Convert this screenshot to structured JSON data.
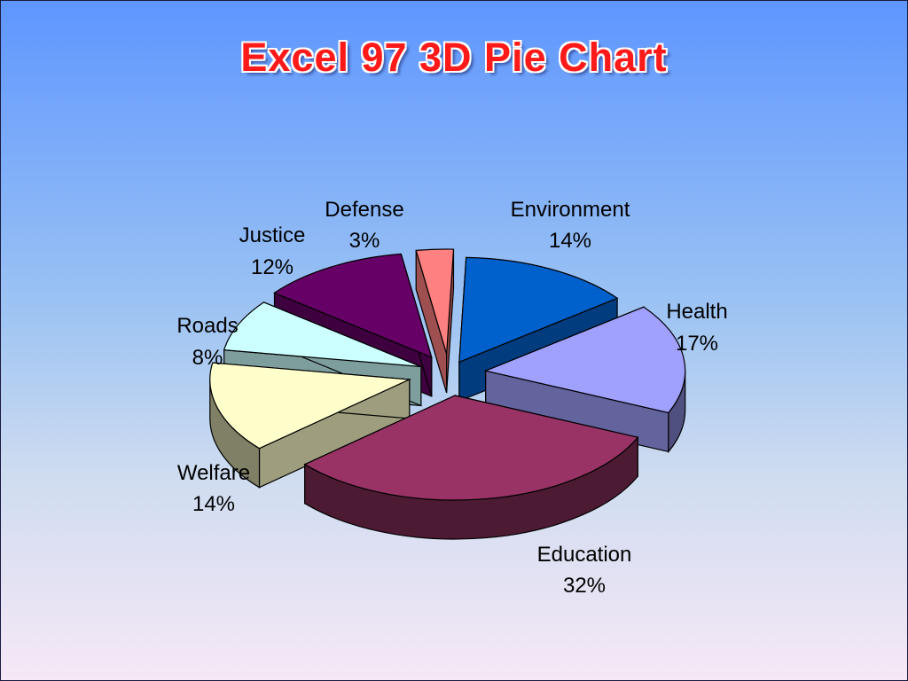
{
  "title": "Excel 97 3D Pie Chart",
  "chart_data": {
    "type": "pie",
    "title": "Excel 97 3D Pie Chart",
    "three_d": true,
    "exploded": true,
    "slices": [
      {
        "label": "Environment",
        "value": 14,
        "value_label": "14%",
        "color": "#0060cc"
      },
      {
        "label": "Health",
        "value": 17,
        "value_label": "17%",
        "color": "#a0a0ff"
      },
      {
        "label": "Education",
        "value": 32,
        "value_label": "32%",
        "color": "#993366"
      },
      {
        "label": "Welfare",
        "value": 14,
        "value_label": "14%",
        "color": "#ffffcc"
      },
      {
        "label": "Roads",
        "value": 8,
        "value_label": "8%",
        "color": "#ccffff"
      },
      {
        "label": "Justice",
        "value": 12,
        "value_label": "12%",
        "color": "#660066"
      },
      {
        "label": "Defense",
        "value": 3,
        "value_label": "3%",
        "color": "#ff8080"
      }
    ]
  }
}
